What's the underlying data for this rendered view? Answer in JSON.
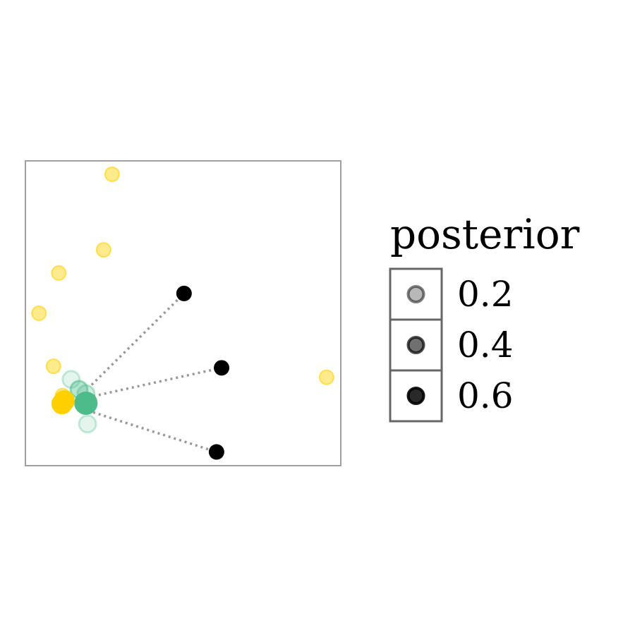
{
  "chart_data": {
    "type": "scatter",
    "title": "",
    "xlabel": "",
    "ylabel": "",
    "xlim": [
      0,
      100
    ],
    "ylim": [
      0,
      100
    ],
    "grid": false,
    "axis_ticks": false,
    "legend": {
      "title": "posterior",
      "placement": "right",
      "entries": [
        {
          "label": "0.2",
          "value": 0.2
        },
        {
          "label": "0.4",
          "value": 0.4
        },
        {
          "label": "0.6",
          "value": 0.6
        }
      ]
    },
    "colors": {
      "frame": "#a0a0a0",
      "yellow": "#ffd000",
      "green": "#4dbb8a",
      "black": "#000000",
      "connector": "#999999",
      "legend_border": "#666666"
    },
    "series": [
      {
        "group": "yellow",
        "points": [
          {
            "x": 27.5,
            "y": 95.6,
            "posterior": 0.5
          },
          {
            "x": 24.8,
            "y": 70.8,
            "posterior": 0.5
          },
          {
            "x": 10.6,
            "y": 63.2,
            "posterior": 0.5
          },
          {
            "x": 4.3,
            "y": 50.0,
            "posterior": 0.5
          },
          {
            "x": 8.9,
            "y": 32.6,
            "posterior": 0.5
          },
          {
            "x": 95.5,
            "y": 29.0,
            "posterior": 0.5
          },
          {
            "x": 11.8,
            "y": 23.0,
            "posterior": 0.5
          },
          {
            "x": 12.3,
            "y": 21.3,
            "posterior": 1.0
          },
          {
            "x": 11.6,
            "y": 20.3,
            "posterior": 1.0
          }
        ]
      },
      {
        "group": "green",
        "points": [
          {
            "x": 14.5,
            "y": 28.3,
            "posterior": 0.15
          },
          {
            "x": 17.0,
            "y": 25.0,
            "posterior": 0.4
          },
          {
            "x": 19.2,
            "y": 23.6,
            "posterior": 0.25
          },
          {
            "x": 19.7,
            "y": 13.7,
            "posterior": 0.15
          },
          {
            "x": 19.2,
            "y": 20.5,
            "posterior": 1.0
          }
        ]
      },
      {
        "group": "black",
        "points": [
          {
            "x": 50.3,
            "y": 56.5,
            "posterior": 1.0
          },
          {
            "x": 62.2,
            "y": 32.1,
            "posterior": 1.0
          },
          {
            "x": 60.6,
            "y": 4.5,
            "posterior": 1.0
          }
        ]
      }
    ],
    "connectors": [
      {
        "from": [
          21.0,
          26.5
        ],
        "to": [
          50.3,
          56.5
        ]
      },
      {
        "from": [
          21.5,
          22.8
        ],
        "to": [
          62.2,
          32.1
        ]
      },
      {
        "from": [
          21.5,
          17.5
        ],
        "to": [
          60.6,
          4.5
        ]
      }
    ]
  }
}
